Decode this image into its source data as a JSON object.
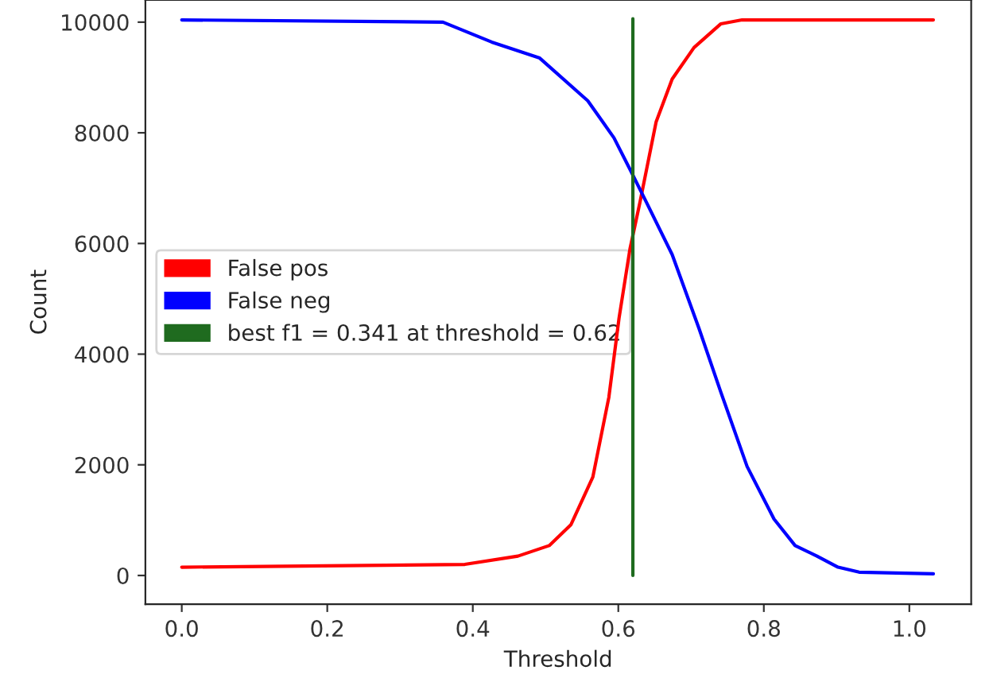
{
  "chart_data": {
    "type": "line",
    "xlabel": "Threshold",
    "ylabel": "Count",
    "xlim": [
      -0.05,
      1.085
    ],
    "ylim": [
      -520,
      10400
    ],
    "xticks": [
      {
        "value": 0.0,
        "label": "0.0"
      },
      0.2,
      0.4,
      0.6,
      0.8,
      {
        "value": 1.0,
        "label": "1.0"
      }
    ],
    "yticks": [
      0,
      2000,
      4000,
      6000,
      8000,
      10000
    ],
    "grid": false,
    "legend": "left",
    "series": [
      {
        "name": "False pos",
        "color": "#ff0000",
        "x": [
          0,
          0.389,
          0.462,
          0.505,
          0.535,
          0.565,
          0.587,
          0.601,
          0.616,
          0.63,
          0.652,
          0.674,
          0.704,
          0.741,
          0.77,
          1.033
        ],
        "values": [
          150,
          200,
          350,
          540,
          920,
          1780,
          3220,
          4650,
          5900,
          6760,
          8200,
          8970,
          9540,
          9970,
          10040,
          10040
        ]
      },
      {
        "name": "False neg",
        "color": "#0000ff",
        "x": [
          0,
          0.359,
          0.426,
          0.492,
          0.558,
          0.594,
          0.616,
          0.638,
          0.674,
          0.711,
          0.741,
          0.777,
          0.814,
          0.843,
          0.873,
          0.902,
          0.931,
          1.033
        ],
        "values": [
          10040,
          10000,
          9640,
          9350,
          8580,
          7910,
          7340,
          6760,
          5800,
          4460,
          3310,
          1970,
          1020,
          540,
          350,
          150,
          60,
          30
        ]
      },
      {
        "name": "best f1 = 0.341 at threshold = 0.62",
        "color": "#1f6b1f",
        "x": [
          0.62,
          0.62
        ],
        "values": [
          0,
          10060
        ]
      }
    ]
  }
}
